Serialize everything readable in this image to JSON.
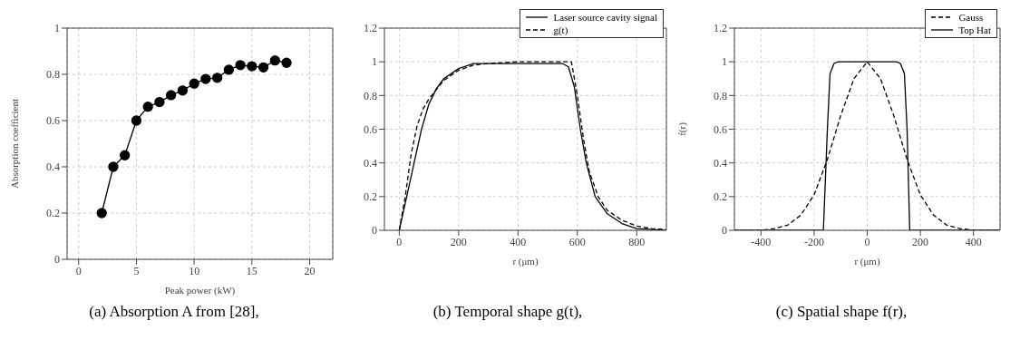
{
  "chart_data": [
    {
      "type": "line",
      "title": "(a) Absorption A from [28],",
      "xlabel": "Peak power (kW)",
      "ylabel": "Absorption coefficient",
      "xlim": [
        -1,
        22
      ],
      "xticks": [
        0,
        5,
        10,
        15,
        20
      ],
      "ylim": [
        0,
        1
      ],
      "yticks": [
        0,
        0.2,
        0.4,
        0.6,
        0.8,
        1
      ],
      "grid": true,
      "legend": false,
      "marker": "circle",
      "series": [
        {
          "color": "#000000",
          "line_style": "solid",
          "x": [
            2,
            3,
            4,
            5,
            6,
            7,
            8,
            9,
            10,
            11,
            12,
            13,
            14,
            15,
            16,
            17,
            18
          ],
          "values": [
            0.2,
            0.4,
            0.45,
            0.6,
            0.66,
            0.68,
            0.71,
            0.73,
            0.76,
            0.78,
            0.785,
            0.82,
            0.84,
            0.835,
            0.83,
            0.86,
            0.85
          ]
        }
      ]
    },
    {
      "type": "line",
      "title": "(b) Temporal shape g(t),",
      "xlabel": "r (μm)",
      "xlim": [
        -50,
        900
      ],
      "xticks": [
        0,
        200,
        400,
        600,
        800
      ],
      "ylim": [
        0,
        1.2
      ],
      "yticks": [
        0,
        0.2,
        0.4,
        0.6,
        0.8,
        1,
        1.2
      ],
      "grid": true,
      "legend": "top right",
      "marker": "none",
      "series": [
        {
          "name": "Laser source cavity signal",
          "color": "#000000",
          "line_style": "solid",
          "x": [
            0,
            25,
            50,
            75,
            100,
            125,
            150,
            200,
            250,
            300,
            400,
            500,
            550,
            570,
            590,
            610,
            630,
            660,
            700,
            750,
            800,
            850,
            900
          ],
          "values": [
            0,
            0.2,
            0.4,
            0.6,
            0.75,
            0.84,
            0.9,
            0.96,
            0.99,
            0.99,
            0.99,
            0.99,
            0.99,
            0.97,
            0.85,
            0.6,
            0.4,
            0.2,
            0.1,
            0.04,
            0.01,
            0.005,
            0
          ]
        },
        {
          "name": "g(t)",
          "color": "#000000",
          "line_style": "dashed",
          "x": [
            0,
            20,
            40,
            60,
            80,
            100,
            150,
            200,
            250,
            300,
            400,
            580,
            585,
            600,
            620,
            640,
            670,
            700,
            750,
            800,
            850,
            900
          ],
          "values": [
            0,
            0.2,
            0.45,
            0.62,
            0.72,
            0.78,
            0.89,
            0.95,
            0.98,
            0.99,
            1,
            1,
            0.95,
            0.8,
            0.55,
            0.35,
            0.2,
            0.12,
            0.06,
            0.025,
            0.01,
            0.005
          ]
        }
      ]
    },
    {
      "type": "line",
      "title": "(c) Spatial shape f(r),",
      "xlabel": "r (μm)",
      "ylabel": "f(r)",
      "xlim": [
        -500,
        500
      ],
      "xticks": [
        -400,
        -200,
        0,
        200,
        400
      ],
      "ylim": [
        0,
        1.2
      ],
      "yticks": [
        0,
        0.2,
        0.4,
        0.6,
        0.8,
        1,
        1.2
      ],
      "grid": true,
      "legend": "top right",
      "marker": "none",
      "series": [
        {
          "name": "Gauss",
          "color": "#000000",
          "line_style": "dashed",
          "x": [
            -500,
            -400,
            -350,
            -300,
            -250,
            -200,
            -150,
            -100,
            -50,
            0,
            50,
            100,
            150,
            200,
            250,
            300,
            350,
            400,
            500
          ],
          "values": [
            0,
            0,
            0.01,
            0.03,
            0.09,
            0.21,
            0.42,
            0.68,
            0.9,
            1,
            0.9,
            0.68,
            0.42,
            0.21,
            0.09,
            0.03,
            0.01,
            0,
            0
          ]
        },
        {
          "name": "Top Hat",
          "color": "#000000",
          "line_style": "solid",
          "x": [
            -500,
            -165,
            -150,
            -140,
            -125,
            -110,
            110,
            125,
            140,
            150,
            160,
            500
          ],
          "values": [
            0,
            0,
            0.6,
            0.93,
            0.99,
            1,
            1,
            0.99,
            0.93,
            0.6,
            0,
            0
          ]
        }
      ]
    }
  ]
}
